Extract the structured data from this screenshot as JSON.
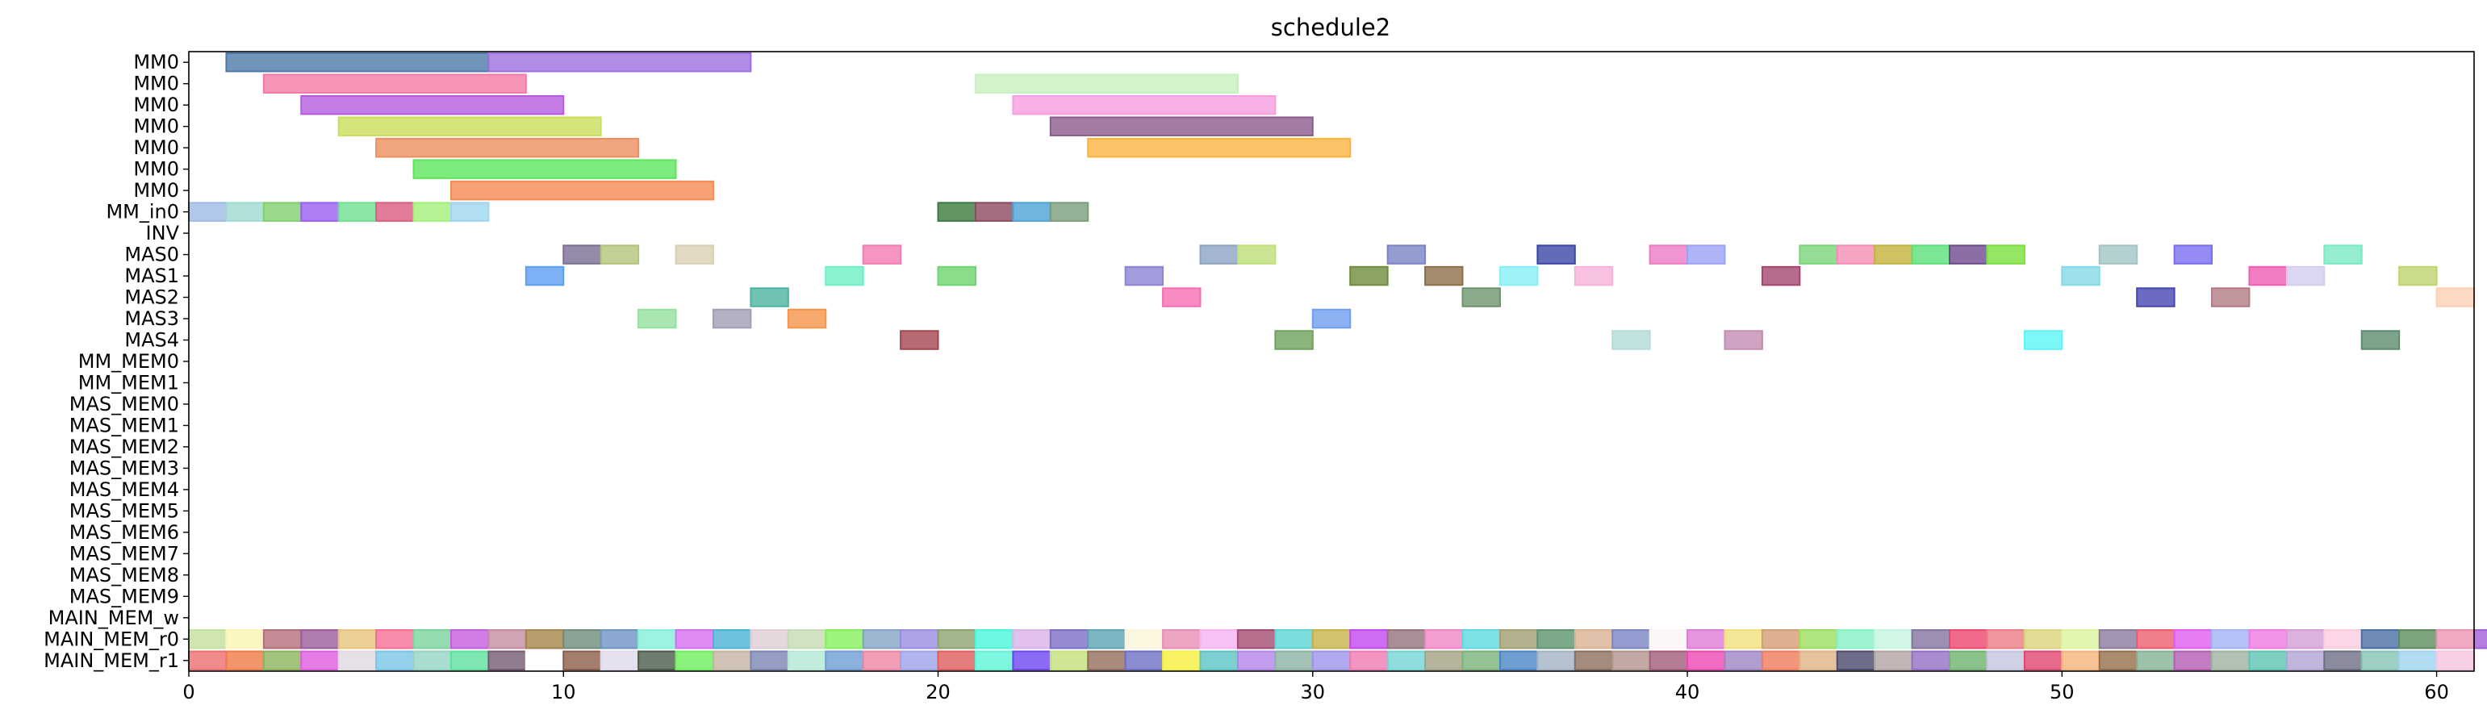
{
  "chart_data": {
    "type": "gantt",
    "title": "schedule2",
    "xlabel": "",
    "ylabel": "",
    "xlim": [
      0,
      61
    ],
    "xticks": [
      0,
      10,
      20,
      30,
      40,
      50,
      60
    ],
    "grid": false,
    "rows": [
      "MM0",
      "MM0",
      "MM0",
      "MM0",
      "MM0",
      "MM0",
      "MM0",
      "MM_in0",
      "INV",
      "MAS0",
      "MAS1",
      "MAS2",
      "MAS3",
      "MAS4",
      "MM_MEM0",
      "MM_MEM1",
      "MAS_MEM0",
      "MAS_MEM1",
      "MAS_MEM2",
      "MAS_MEM3",
      "MAS_MEM4",
      "MAS_MEM5",
      "MAS_MEM6",
      "MAS_MEM7",
      "MAS_MEM8",
      "MAS_MEM9",
      "MAIN_MEM_w",
      "MAIN_MEM_r0",
      "MAIN_MEM_r1"
    ],
    "bars": [
      {
        "row": 0,
        "start": 1,
        "end": 8,
        "color": "#4e79a7"
      },
      {
        "row": 0,
        "start": 8,
        "end": 15,
        "color": "#9d6fe0"
      },
      {
        "row": 1,
        "start": 2,
        "end": 9,
        "color": "#f47aa6"
      },
      {
        "row": 1,
        "start": 21,
        "end": 28,
        "color": "#c9f0c0"
      },
      {
        "row": 2,
        "start": 3,
        "end": 10,
        "color": "#b45be0"
      },
      {
        "row": 2,
        "start": 22,
        "end": 29,
        "color": "#f59ee0"
      },
      {
        "row": 3,
        "start": 4,
        "end": 11,
        "color": "#ccdf5a"
      },
      {
        "row": 3,
        "start": 23,
        "end": 30,
        "color": "#8c5b8c"
      },
      {
        "row": 4,
        "start": 5,
        "end": 12,
        "color": "#ec8e5f"
      },
      {
        "row": 4,
        "start": 24,
        "end": 31,
        "color": "#fbb33e"
      },
      {
        "row": 5,
        "start": 6,
        "end": 13,
        "color": "#5ce65c"
      },
      {
        "row": 6,
        "start": 7,
        "end": 14,
        "color": "#f58b52"
      },
      {
        "row": 7,
        "start": 0,
        "end": 1,
        "color": "#9ebae6"
      },
      {
        "row": 7,
        "start": 1,
        "end": 2,
        "color": "#9fd9d0"
      },
      {
        "row": 7,
        "start": 2,
        "end": 3,
        "color": "#7fd16f"
      },
      {
        "row": 7,
        "start": 3,
        "end": 4,
        "color": "#9a5ff0"
      },
      {
        "row": 7,
        "start": 4,
        "end": 5,
        "color": "#6fe08f"
      },
      {
        "row": 7,
        "start": 5,
        "end": 6,
        "color": "#db5c80"
      },
      {
        "row": 7,
        "start": 6,
        "end": 7,
        "color": "#a2f07a"
      },
      {
        "row": 7,
        "start": 7,
        "end": 8,
        "color": "#9ed6f0"
      },
      {
        "row": 7,
        "start": 20,
        "end": 21,
        "color": "#3c7a3c"
      },
      {
        "row": 7,
        "start": 21,
        "end": 22,
        "color": "#8c4a5c"
      },
      {
        "row": 7,
        "start": 22,
        "end": 23,
        "color": "#4ca3d4"
      },
      {
        "row": 7,
        "start": 23,
        "end": 24,
        "color": "#7a9e7a"
      },
      {
        "row": 9,
        "start": 10,
        "end": 11,
        "color": "#7a6e94"
      },
      {
        "row": 9,
        "start": 11,
        "end": 12,
        "color": "#b3c47a"
      },
      {
        "row": 9,
        "start": 13,
        "end": 14,
        "color": "#d9d0b3"
      },
      {
        "row": 9,
        "start": 18,
        "end": 19,
        "color": "#f57ab3"
      },
      {
        "row": 9,
        "start": 27,
        "end": 28,
        "color": "#8ca3c4"
      },
      {
        "row": 9,
        "start": 28,
        "end": 29,
        "color": "#bde07a"
      },
      {
        "row": 9,
        "start": 32,
        "end": 33,
        "color": "#7a84c4"
      },
      {
        "row": 9,
        "start": 36,
        "end": 37,
        "color": "#3c46a8"
      },
      {
        "row": 9,
        "start": 39,
        "end": 40,
        "color": "#ec7ac4"
      },
      {
        "row": 9,
        "start": 40,
        "end": 41,
        "color": "#9aa3f5"
      },
      {
        "row": 9,
        "start": 43,
        "end": 44,
        "color": "#7ad47a"
      },
      {
        "row": 9,
        "start": 44,
        "end": 45,
        "color": "#f58cb3"
      },
      {
        "row": 9,
        "start": 45,
        "end": 46,
        "color": "#c4b33c"
      },
      {
        "row": 9,
        "start": 46,
        "end": 47,
        "color": "#5ce07a"
      },
      {
        "row": 9,
        "start": 47,
        "end": 48,
        "color": "#6e4a8c"
      },
      {
        "row": 9,
        "start": 48,
        "end": 49,
        "color": "#7ae03c"
      },
      {
        "row": 9,
        "start": 51,
        "end": 52,
        "color": "#a3c4c4"
      },
      {
        "row": 9,
        "start": 53,
        "end": 54,
        "color": "#7a6ef0"
      },
      {
        "row": 9,
        "start": 57,
        "end": 58,
        "color": "#7ae8c4"
      },
      {
        "row": 10,
        "start": 9,
        "end": 10,
        "color": "#5c9ef0"
      },
      {
        "row": 10,
        "start": 17,
        "end": 18,
        "color": "#6ef0c4"
      },
      {
        "row": 10,
        "start": 20,
        "end": 21,
        "color": "#6ed46e"
      },
      {
        "row": 10,
        "start": 25,
        "end": 26,
        "color": "#8c84d4"
      },
      {
        "row": 10,
        "start": 31,
        "end": 32,
        "color": "#6e8c3c"
      },
      {
        "row": 10,
        "start": 33,
        "end": 34,
        "color": "#8c6e4a"
      },
      {
        "row": 10,
        "start": 35,
        "end": 36,
        "color": "#84f0f5"
      },
      {
        "row": 10,
        "start": 37,
        "end": 38,
        "color": "#f5b3d9"
      },
      {
        "row": 10,
        "start": 42,
        "end": 43,
        "color": "#a3466e"
      },
      {
        "row": 10,
        "start": 50,
        "end": 51,
        "color": "#84d9e8"
      },
      {
        "row": 10,
        "start": 55,
        "end": 56,
        "color": "#f05cb3"
      },
      {
        "row": 10,
        "start": 56,
        "end": 57,
        "color": "#d4ccec"
      },
      {
        "row": 10,
        "start": 59,
        "end": 60,
        "color": "#bdd46e"
      },
      {
        "row": 11,
        "start": 15,
        "end": 16,
        "color": "#4cb3a3"
      },
      {
        "row": 11,
        "start": 26,
        "end": 27,
        "color": "#f56eb3"
      },
      {
        "row": 11,
        "start": 34,
        "end": 35,
        "color": "#6e946e"
      },
      {
        "row": 11,
        "start": 52,
        "end": 53,
        "color": "#4646b3"
      },
      {
        "row": 11,
        "start": 54,
        "end": 55,
        "color": "#b37a84"
      },
      {
        "row": 11,
        "start": 60,
        "end": 61,
        "color": "#fbd0b3"
      },
      {
        "row": 12,
        "start": 12,
        "end": 13,
        "color": "#94e09e"
      },
      {
        "row": 12,
        "start": 14,
        "end": 15,
        "color": "#a39eb3"
      },
      {
        "row": 12,
        "start": 16,
        "end": 17,
        "color": "#f5944a"
      },
      {
        "row": 12,
        "start": 30,
        "end": 31,
        "color": "#6e9ef0"
      },
      {
        "row": 13,
        "start": 19,
        "end": 20,
        "color": "#a3464e"
      },
      {
        "row": 13,
        "start": 29,
        "end": 30,
        "color": "#6ea35c"
      },
      {
        "row": 13,
        "start": 38,
        "end": 39,
        "color": "#b3dbd9"
      },
      {
        "row": 13,
        "start": 41,
        "end": 42,
        "color": "#c48cb3"
      },
      {
        "row": 13,
        "start": 49,
        "end": 50,
        "color": "#5cf5f5"
      },
      {
        "row": 13,
        "start": 58,
        "end": 59,
        "color": "#5c8c6e"
      }
    ],
    "mem_rows": [
      {
        "row": 27,
        "colors": [
          "#c4e09e",
          "#fbf5b3",
          "#b36e7a",
          "#9a5c9a",
          "#e8c47a",
          "#f56e94",
          "#7ad49e",
          "#c45ce0",
          "#c48ca3",
          "#a3844a",
          "#6e8c7a",
          "#6e94c4",
          "#84f0d9",
          "#d46ef0",
          "#4ab3d4",
          "#e0ccd4",
          "#c4dbb3",
          "#84f05c",
          "#84a3c4",
          "#9a8ce0",
          "#8ca36e",
          "#4af5d9",
          "#d9b3e8",
          "#7a6ec4",
          "#5ca3b3",
          "#fbf5d9",
          "#e88cb3",
          "#f5b3f0",
          "#a34a6e",
          "#5cd4d4",
          "#c4b34a",
          "#c446f0",
          "#94737a",
          "#f084c4",
          "#5cd9e0",
          "#a39e73",
          "#5c946e",
          "#d9b394",
          "#7a84c4",
          "#fbf5f5",
          "#e07ad9",
          "#f0e07a",
          "#d49e73",
          "#9ae05c",
          "#84f0c4",
          "#c4f5e0",
          "#84739e",
          "#ec466e",
          "#ec7a84",
          "#d9d47a",
          "#d9f59e",
          "#8c7a9e",
          "#ec5c6e",
          "#e05cf0",
          "#a3b3f5",
          "#f07ae0",
          "#d49ed4",
          "#fbcce0",
          "#4a6ea3",
          "#5c8c5c",
          "#ec94b3",
          "#a35cd9",
          "#f07ad9"
        ]
      },
      {
        "row": 28,
        "colors": [
          "#ec6e6e",
          "#f07a46",
          "#8cb35c",
          "#e05ce0",
          "#e0d9e0",
          "#7ac4e8",
          "#94d4c4",
          "#5ce09e",
          "#735c73",
          "#ffffff",
          "#8c5c4a",
          "#e0d9ec",
          "#4a5c4a",
          "#6ef05c",
          "#c4b3a3",
          "#7a84b3",
          "#b3e8d4",
          "#6e9ed4",
          "#ec84a3",
          "#9ea3e8",
          "#e05c5c",
          "#5cf5d4",
          "#6e46f0",
          "#c4e07a",
          "#946e5c",
          "#6e6ec4",
          "#f5f03c",
          "#5cc4c4",
          "#b384e8",
          "#8cb3a3",
          "#9e94e8",
          "#f07ab3",
          "#73d4d4",
          "#a3a384",
          "#7ab37a",
          "#4a84c4",
          "#a3b3c4",
          "#8c6e5c",
          "#b3948c",
          "#a35c7a",
          "#ec46b3",
          "#9e84c4",
          "#f07a5c",
          "#e0b384",
          "#4a4a6e",
          "#b3a3a3",
          "#946ec4",
          "#6eb36e",
          "#c4c4e0",
          "#e0466e",
          "#f5b37a",
          "#946e4a",
          "#84b394",
          "#b35cb3",
          "#9eb3a3",
          "#5cc4b3",
          "#b3a3d4",
          "#6e6e84",
          "#84c4b3",
          "#9ed4f0",
          "#f5c4e0"
        ]
      }
    ]
  }
}
